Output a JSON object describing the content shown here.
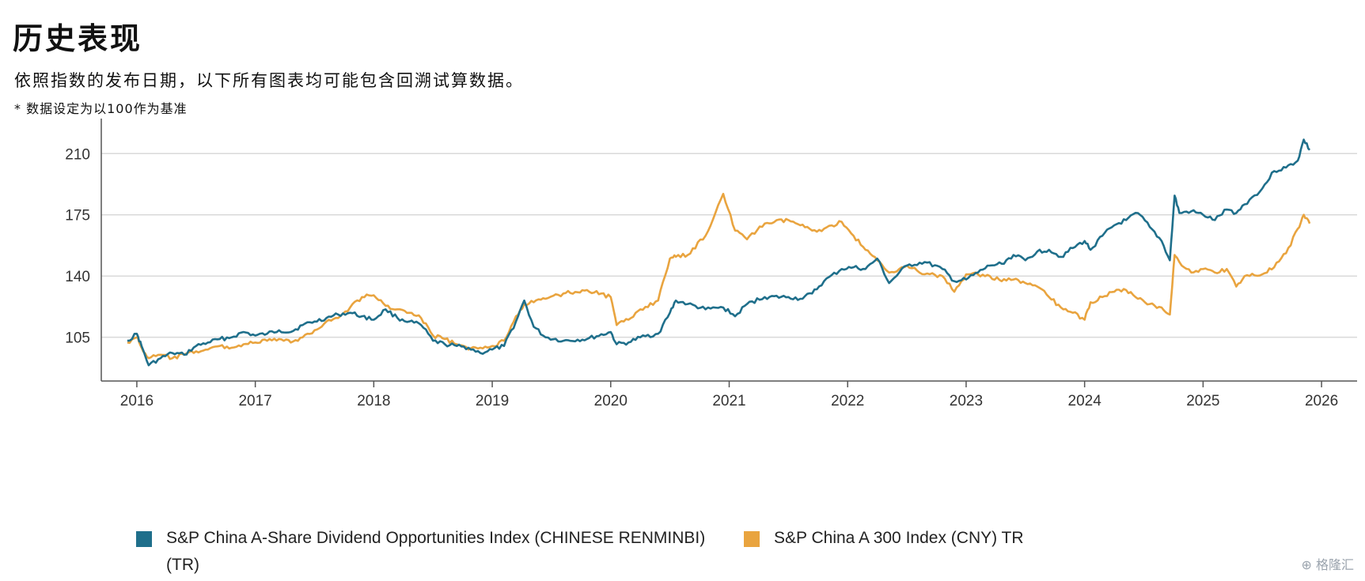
{
  "header": {
    "title": "历史表现",
    "subtitle": "依照指数的发布日期，以下所有图表均可能包含回溯试算数据。",
    "note": "* 数据设定为以100作为基准"
  },
  "colors": {
    "series1": "#1f6f8b",
    "series2": "#e9a43f",
    "grid": "#d9d9d9",
    "axis": "#555555"
  },
  "chart_data": {
    "type": "line",
    "xlabel": "",
    "ylabel": "",
    "xlim": [
      2015.7,
      2026.3
    ],
    "ylim": [
      80,
      230
    ],
    "x_ticks": [
      2016,
      2017,
      2018,
      2019,
      2020,
      2021,
      2022,
      2023,
      2024,
      2025,
      2026
    ],
    "x_tick_labels": [
      "2016",
      "2017",
      "2018",
      "2019",
      "2020",
      "2021",
      "2022",
      "2023",
      "2024",
      "2025",
      "2026"
    ],
    "y_ticks": [
      105,
      140,
      175,
      210
    ],
    "y_tick_labels": [
      "105",
      "140",
      "175",
      "210"
    ],
    "grid": true,
    "legend_position": "bottom",
    "series": [
      {
        "name": "S&P China A-Share Dividend Opportunities Index (CHINESE RENMINBI) (TR)",
        "x": [
          2015.92,
          2016.0,
          2016.04,
          2016.1,
          2016.2,
          2016.3,
          2016.4,
          2016.5,
          2016.6,
          2016.7,
          2016.8,
          2016.9,
          2017.0,
          2017.1,
          2017.2,
          2017.3,
          2017.4,
          2017.5,
          2017.6,
          2017.7,
          2017.8,
          2017.9,
          2018.0,
          2018.1,
          2018.2,
          2018.3,
          2018.4,
          2018.5,
          2018.6,
          2018.7,
          2018.8,
          2018.9,
          2019.0,
          2019.1,
          2019.2,
          2019.27,
          2019.35,
          2019.45,
          2019.6,
          2019.8,
          2020.0,
          2020.05,
          2020.15,
          2020.25,
          2020.4,
          2020.5,
          2020.55,
          2020.65,
          2020.8,
          2020.95,
          2021.05,
          2021.15,
          2021.3,
          2021.5,
          2021.6,
          2021.7,
          2021.8,
          2021.95,
          2022.05,
          2022.15,
          2022.25,
          2022.35,
          2022.5,
          2022.65,
          2022.8,
          2022.9,
          2023.0,
          2023.1,
          2023.2,
          2023.3,
          2023.4,
          2023.5,
          2023.6,
          2023.7,
          2023.8,
          2023.9,
          2024.0,
          2024.05,
          2024.15,
          2024.25,
          2024.35,
          2024.45,
          2024.55,
          2024.65,
          2024.72,
          2024.76,
          2024.8,
          2024.9,
          2025.0,
          2025.1,
          2025.2,
          2025.28,
          2025.35,
          2025.5,
          2025.6,
          2025.7,
          2025.8,
          2025.85,
          2025.9
        ],
        "values": [
          103,
          107,
          100,
          89,
          93,
          96,
          95,
          100,
          102,
          104,
          105,
          108,
          106,
          107,
          109,
          108,
          112,
          114,
          116,
          118,
          119,
          117,
          115,
          121,
          116,
          114,
          112,
          103,
          101,
          100,
          99,
          96,
          98,
          100,
          114,
          126,
          111,
          105,
          103,
          104,
          108,
          101,
          102,
          105,
          107,
          119,
          126,
          124,
          121,
          122,
          117,
          124,
          128,
          128,
          127,
          130,
          137,
          144,
          145,
          144,
          150,
          136,
          146,
          148,
          144,
          137,
          138,
          142,
          146,
          147,
          152,
          149,
          154,
          155,
          151,
          156,
          160,
          155,
          163,
          169,
          172,
          176,
          168,
          160,
          149,
          186,
          176,
          177,
          175,
          172,
          178,
          176,
          181,
          190,
          200,
          202,
          206,
          218,
          212
        ]
      },
      {
        "name": "S&P China A 300 Index (CNY) TR",
        "x": [
          2015.92,
          2016.0,
          2016.04,
          2016.1,
          2016.2,
          2016.3,
          2016.4,
          2016.5,
          2016.6,
          2016.7,
          2016.8,
          2016.9,
          2017.0,
          2017.1,
          2017.2,
          2017.3,
          2017.4,
          2017.5,
          2017.6,
          2017.7,
          2017.8,
          2017.9,
          2018.0,
          2018.1,
          2018.2,
          2018.3,
          2018.4,
          2018.5,
          2018.6,
          2018.7,
          2018.8,
          2018.9,
          2019.0,
          2019.1,
          2019.2,
          2019.27,
          2019.35,
          2019.45,
          2019.6,
          2019.8,
          2020.0,
          2020.05,
          2020.15,
          2020.25,
          2020.4,
          2020.5,
          2020.55,
          2020.65,
          2020.8,
          2020.95,
          2021.05,
          2021.15,
          2021.3,
          2021.5,
          2021.6,
          2021.7,
          2021.8,
          2021.95,
          2022.05,
          2022.15,
          2022.25,
          2022.35,
          2022.5,
          2022.65,
          2022.8,
          2022.9,
          2023.0,
          2023.1,
          2023.2,
          2023.3,
          2023.4,
          2023.5,
          2023.6,
          2023.7,
          2023.8,
          2023.9,
          2024.0,
          2024.05,
          2024.15,
          2024.25,
          2024.35,
          2024.45,
          2024.55,
          2024.65,
          2024.72,
          2024.76,
          2024.8,
          2024.9,
          2025.0,
          2025.1,
          2025.2,
          2025.28,
          2025.35,
          2025.5,
          2025.6,
          2025.7,
          2025.8,
          2025.85,
          2025.9
        ],
        "values": [
          102,
          105,
          99,
          93,
          95,
          93,
          95,
          97,
          98,
          100,
          99,
          101,
          102,
          103,
          104,
          102,
          105,
          109,
          114,
          116,
          122,
          128,
          129,
          123,
          121,
          119,
          116,
          106,
          104,
          101,
          98,
          99,
          100,
          103,
          117,
          124,
          125,
          127,
          130,
          132,
          128,
          112,
          115,
          121,
          126,
          150,
          151,
          152,
          163,
          187,
          166,
          161,
          170,
          172,
          169,
          166,
          167,
          171,
          163,
          155,
          149,
          142,
          146,
          141,
          140,
          131,
          141,
          141,
          140,
          137,
          138,
          136,
          134,
          128,
          122,
          119,
          115,
          125,
          128,
          131,
          132,
          127,
          124,
          122,
          118,
          152,
          148,
          142,
          144,
          142,
          144,
          134,
          140,
          141,
          145,
          153,
          167,
          175,
          170
        ]
      }
    ]
  },
  "legend": {
    "item1": "S&P China A-Share Dividend Opportunities Index (CHINESE RENMINBI) (TR)",
    "item2": "S&P China A 300 Index (CNY) TR"
  },
  "watermark": "格隆汇"
}
